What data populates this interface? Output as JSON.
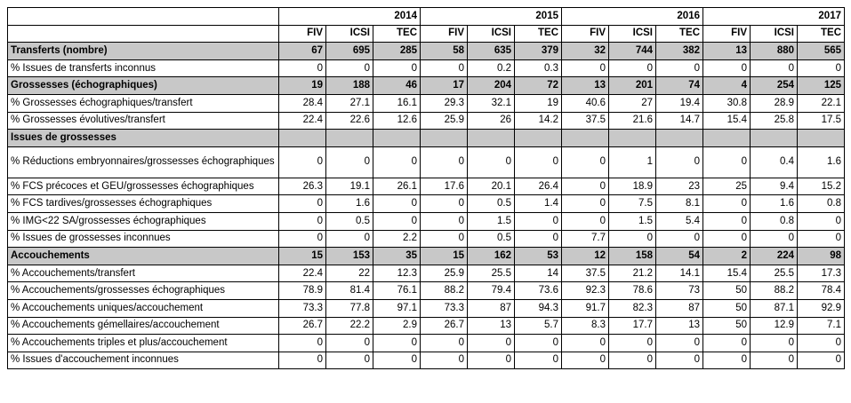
{
  "years": [
    "2014",
    "2015",
    "2016",
    "2017"
  ],
  "subheaders": [
    "FIV",
    "ICSI",
    "TEC",
    "FIV",
    "ICSI",
    "TEC",
    "FIV",
    "ICSI",
    "TEC",
    "FIV",
    "ICSI",
    "TEC"
  ],
  "rows": [
    {
      "label": "Transferts (nombre)",
      "style": "section",
      "values": [
        "67",
        "695",
        "285",
        "58",
        "635",
        "379",
        "32",
        "744",
        "382",
        "13",
        "880",
        "565"
      ]
    },
    {
      "label": "% Issues de transferts inconnus",
      "style": "normal",
      "values": [
        "0",
        "0",
        "0",
        "0",
        "0.2",
        "0.3",
        "0",
        "0",
        "0",
        "0",
        "0",
        "0"
      ]
    },
    {
      "label": "Grossesses (échographiques)",
      "style": "section",
      "values": [
        "19",
        "188",
        "46",
        "17",
        "204",
        "72",
        "13",
        "201",
        "74",
        "4",
        "254",
        "125"
      ]
    },
    {
      "label": "% Grossesses échographiques/transfert",
      "style": "normal",
      "values": [
        "28.4",
        "27.1",
        "16.1",
        "29.3",
        "32.1",
        "19",
        "40.6",
        "27",
        "19.4",
        "30.8",
        "28.9",
        "22.1"
      ]
    },
    {
      "label": "% Grossesses évolutives/transfert",
      "style": "normal",
      "values": [
        "22.4",
        "22.6",
        "12.6",
        "25.9",
        "26",
        "14.2",
        "37.5",
        "21.6",
        "14.7",
        "15.4",
        "25.8",
        "17.5"
      ]
    },
    {
      "label": "Issues de grossesses",
      "style": "section",
      "values": [
        "",
        "",
        "",
        "",
        "",
        "",
        "",
        "",
        "",
        "",
        "",
        ""
      ]
    },
    {
      "label": "% Réductions embryonnaires/grossesses échographiques",
      "style": "tall",
      "values": [
        "0",
        "0",
        "0",
        "0",
        "0",
        "0",
        "0",
        "1",
        "0",
        "0",
        "0.4",
        "1.6"
      ]
    },
    {
      "label": "% FCS précoces et GEU/grossesses échographiques",
      "style": "normal",
      "values": [
        "26.3",
        "19.1",
        "26.1",
        "17.6",
        "20.1",
        "26.4",
        "0",
        "18.9",
        "23",
        "25",
        "9.4",
        "15.2"
      ]
    },
    {
      "label": "% FCS tardives/grossesses échographiques",
      "style": "normal",
      "values": [
        "0",
        "1.6",
        "0",
        "0",
        "0.5",
        "1.4",
        "0",
        "7.5",
        "8.1",
        "0",
        "1.6",
        "0.8"
      ]
    },
    {
      "label": "% IMG<22 SA/grossesses échographiques",
      "style": "normal",
      "values": [
        "0",
        "0.5",
        "0",
        "0",
        "1.5",
        "0",
        "0",
        "1.5",
        "5.4",
        "0",
        "0.8",
        "0"
      ]
    },
    {
      "label": "% Issues de grossesses inconnues",
      "style": "normal",
      "values": [
        "0",
        "0",
        "2.2",
        "0",
        "0.5",
        "0",
        "7.7",
        "0",
        "0",
        "0",
        "0",
        "0"
      ]
    },
    {
      "label": "Accouchements",
      "style": "section",
      "values": [
        "15",
        "153",
        "35",
        "15",
        "162",
        "53",
        "12",
        "158",
        "54",
        "2",
        "224",
        "98"
      ]
    },
    {
      "label": "% Accouchements/transfert",
      "style": "normal",
      "values": [
        "22.4",
        "22",
        "12.3",
        "25.9",
        "25.5",
        "14",
        "37.5",
        "21.2",
        "14.1",
        "15.4",
        "25.5",
        "17.3"
      ]
    },
    {
      "label": "% Accouchements/grossesses échographiques",
      "style": "normal",
      "values": [
        "78.9",
        "81.4",
        "76.1",
        "88.2",
        "79.4",
        "73.6",
        "92.3",
        "78.6",
        "73",
        "50",
        "88.2",
        "78.4"
      ]
    },
    {
      "label": "% Accouchements uniques/accouchement",
      "style": "normal",
      "values": [
        "73.3",
        "77.8",
        "97.1",
        "73.3",
        "87",
        "94.3",
        "91.7",
        "82.3",
        "87",
        "50",
        "87.1",
        "92.9"
      ]
    },
    {
      "label": "% Accouchements gémellaires/accouchement",
      "style": "normal",
      "values": [
        "26.7",
        "22.2",
        "2.9",
        "26.7",
        "13",
        "5.7",
        "8.3",
        "17.7",
        "13",
        "50",
        "12.9",
        "7.1"
      ]
    },
    {
      "label": "% Accouchements triples et plus/accouchement",
      "style": "normal",
      "values": [
        "0",
        "0",
        "0",
        "0",
        "0",
        "0",
        "0",
        "0",
        "0",
        "0",
        "0",
        "0"
      ]
    },
    {
      "label": "% Issues d'accouchement inconnues",
      "style": "normal",
      "values": [
        "0",
        "0",
        "0",
        "0",
        "0",
        "0",
        "0",
        "0",
        "0",
        "0",
        "0",
        "0"
      ]
    }
  ]
}
